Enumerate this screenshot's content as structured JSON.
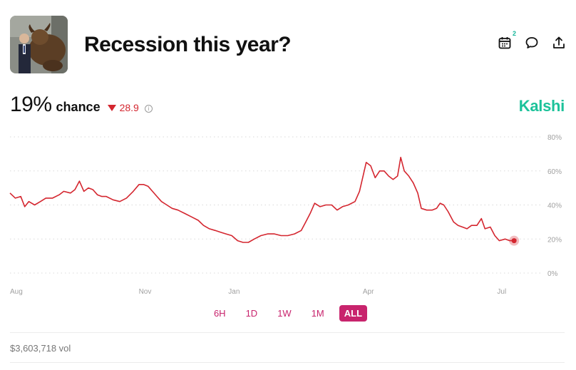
{
  "header": {
    "title": "Recession this year?",
    "calendar_badge": "2"
  },
  "stats": {
    "percent": "19%",
    "chance_label": "chance",
    "delta": "28.9",
    "info": "i"
  },
  "brand": "Kalshi",
  "colors": {
    "line": "#d4262f",
    "brand": "#1cc29a",
    "accent": "#c8246d",
    "grid": "#d9d9d9"
  },
  "ranges": [
    "6H",
    "1D",
    "1W",
    "1M",
    "ALL"
  ],
  "active_range": "ALL",
  "volume": "$3,603,718 vol",
  "chart_data": {
    "type": "line",
    "title": "",
    "xlabel": "",
    "ylabel": "",
    "ylim": [
      0,
      80
    ],
    "y_ticks": [
      "80%",
      "60%",
      "40%",
      "20%",
      "0%"
    ],
    "y_tick_values": [
      80,
      60,
      40,
      20,
      0
    ],
    "x_ticks": [
      "Aug",
      "Nov",
      "Jan",
      "Apr",
      "Jul"
    ],
    "x_tick_positions": [
      0,
      3,
      5,
      8,
      11
    ],
    "x_range": [
      0,
      11.55
    ],
    "grid": true,
    "series": [
      {
        "points": [
          [
            0.0,
            47
          ],
          [
            0.12,
            44
          ],
          [
            0.24,
            45
          ],
          [
            0.33,
            39
          ],
          [
            0.42,
            42
          ],
          [
            0.55,
            40
          ],
          [
            0.68,
            42
          ],
          [
            0.8,
            44
          ],
          [
            0.95,
            44
          ],
          [
            1.1,
            46
          ],
          [
            1.2,
            48
          ],
          [
            1.35,
            47
          ],
          [
            1.45,
            49
          ],
          [
            1.55,
            54
          ],
          [
            1.65,
            48
          ],
          [
            1.75,
            50
          ],
          [
            1.85,
            49
          ],
          [
            1.95,
            46
          ],
          [
            2.05,
            45
          ],
          [
            2.15,
            45
          ],
          [
            2.3,
            43
          ],
          [
            2.45,
            42
          ],
          [
            2.6,
            44
          ],
          [
            2.75,
            48
          ],
          [
            2.88,
            52
          ],
          [
            2.98,
            52
          ],
          [
            3.08,
            51
          ],
          [
            3.18,
            48
          ],
          [
            3.28,
            45
          ],
          [
            3.38,
            42
          ],
          [
            3.5,
            40
          ],
          [
            3.62,
            38
          ],
          [
            3.75,
            37
          ],
          [
            3.9,
            35
          ],
          [
            4.05,
            33
          ],
          [
            4.2,
            31
          ],
          [
            4.32,
            28
          ],
          [
            4.45,
            26
          ],
          [
            4.58,
            25
          ],
          [
            4.7,
            24
          ],
          [
            4.82,
            23
          ],
          [
            4.95,
            22
          ],
          [
            5.08,
            19
          ],
          [
            5.2,
            18
          ],
          [
            5.32,
            18
          ],
          [
            5.45,
            20
          ],
          [
            5.6,
            22
          ],
          [
            5.75,
            23
          ],
          [
            5.9,
            23
          ],
          [
            6.05,
            22
          ],
          [
            6.2,
            22
          ],
          [
            6.35,
            23
          ],
          [
            6.5,
            25
          ],
          [
            6.6,
            30
          ],
          [
            6.7,
            35
          ],
          [
            6.8,
            41
          ],
          [
            6.92,
            39
          ],
          [
            7.05,
            40
          ],
          [
            7.18,
            40
          ],
          [
            7.3,
            37
          ],
          [
            7.42,
            39
          ],
          [
            7.55,
            40
          ],
          [
            7.7,
            42
          ],
          [
            7.8,
            48
          ],
          [
            7.88,
            57
          ],
          [
            7.95,
            65
          ],
          [
            8.05,
            63
          ],
          [
            8.15,
            56
          ],
          [
            8.25,
            60
          ],
          [
            8.35,
            60
          ],
          [
            8.45,
            57
          ],
          [
            8.55,
            55
          ],
          [
            8.65,
            57
          ],
          [
            8.72,
            68
          ],
          [
            8.8,
            60
          ],
          [
            8.9,
            57
          ],
          [
            9.0,
            53
          ],
          [
            9.1,
            47
          ],
          [
            9.18,
            38
          ],
          [
            9.3,
            37
          ],
          [
            9.42,
            37
          ],
          [
            9.52,
            38
          ],
          [
            9.6,
            41
          ],
          [
            9.68,
            40
          ],
          [
            9.78,
            36
          ],
          [
            9.9,
            30
          ],
          [
            10.0,
            28
          ],
          [
            10.1,
            27
          ],
          [
            10.2,
            26
          ],
          [
            10.3,
            28
          ],
          [
            10.42,
            28
          ],
          [
            10.52,
            32
          ],
          [
            10.6,
            26
          ],
          [
            10.72,
            27
          ],
          [
            10.82,
            22
          ],
          [
            10.92,
            19
          ],
          [
            11.05,
            20
          ],
          [
            11.15,
            19
          ],
          [
            11.25,
            19
          ]
        ]
      }
    ]
  }
}
